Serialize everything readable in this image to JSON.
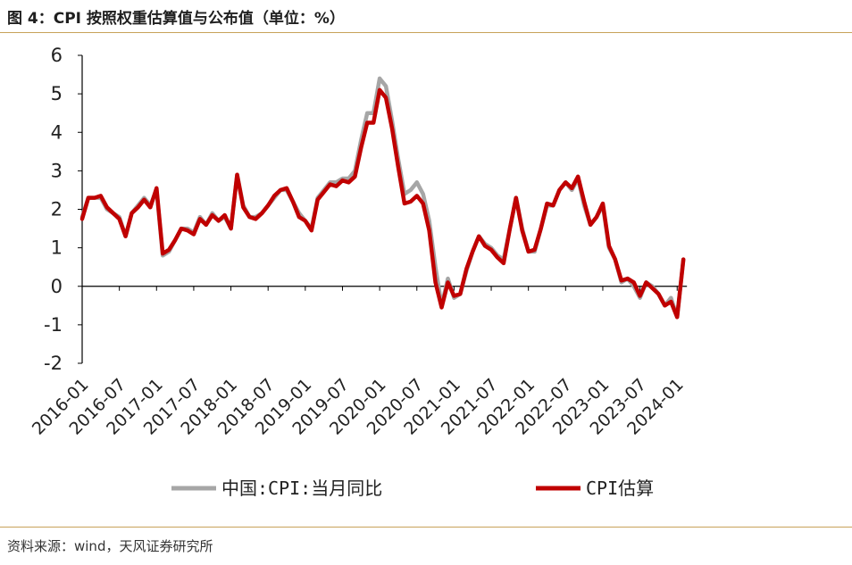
{
  "figure": {
    "title": "图 4：CPI 按照权重估算值与公布值（单位：%）",
    "source": "资料来源：wind，天风证券研究所"
  },
  "chart_data": {
    "type": "line",
    "title": "图 4：CPI 按照权重估算值与公布值（单位：%）",
    "xlabel": "",
    "ylabel": "%",
    "ylim": [
      -2,
      6
    ],
    "yticks": [
      -2,
      -1,
      0,
      1,
      2,
      3,
      4,
      5,
      6
    ],
    "xticks": [
      "2016-01",
      "2016-07",
      "2017-01",
      "2017-07",
      "2018-01",
      "2018-07",
      "2019-01",
      "2019-07",
      "2020-01",
      "2020-07",
      "2021-01",
      "2021-07",
      "2022-01",
      "2022-07",
      "2023-01",
      "2023-07",
      "2024-01"
    ],
    "legend_position": "bottom",
    "series": [
      {
        "name": "中国:CPI:当月同比",
        "color": "#a6a6a6",
        "start": "2016-01",
        "values": [
          1.8,
          2.3,
          2.3,
          2.3,
          2.0,
          1.9,
          1.8,
          1.3,
          1.9,
          2.1,
          2.3,
          2.1,
          2.5,
          0.8,
          0.9,
          1.2,
          1.5,
          1.5,
          1.4,
          1.8,
          1.6,
          1.9,
          1.7,
          1.8,
          1.5,
          2.9,
          2.1,
          1.8,
          1.8,
          1.9,
          2.1,
          2.3,
          2.5,
          2.5,
          2.2,
          1.9,
          1.7,
          1.5,
          2.3,
          2.5,
          2.7,
          2.7,
          2.8,
          2.8,
          3.0,
          3.8,
          4.5,
          4.5,
          5.4,
          5.2,
          4.3,
          3.3,
          2.4,
          2.5,
          2.7,
          2.4,
          1.7,
          0.5,
          -0.5,
          0.2,
          -0.3,
          -0.2,
          0.4,
          0.9,
          1.3,
          1.1,
          1.0,
          0.8,
          0.7,
          1.5,
          2.3,
          1.5,
          0.9,
          0.9,
          1.5,
          2.1,
          2.1,
          2.5,
          2.7,
          2.5,
          2.8,
          2.1,
          1.6,
          1.8,
          2.1,
          1.0,
          0.7,
          0.1,
          0.2,
          0.0,
          -0.3,
          0.1,
          0.0,
          -0.2,
          -0.5,
          -0.3,
          -0.8,
          0.7
        ]
      },
      {
        "name": "CPI估算",
        "color": "#c00000",
        "start": "2016-01",
        "values": [
          1.75,
          2.3,
          2.3,
          2.35,
          2.05,
          1.9,
          1.75,
          1.3,
          1.9,
          2.05,
          2.25,
          2.05,
          2.55,
          0.85,
          0.95,
          1.2,
          1.5,
          1.45,
          1.35,
          1.75,
          1.6,
          1.85,
          1.7,
          1.85,
          1.5,
          2.9,
          2.05,
          1.8,
          1.75,
          1.9,
          2.1,
          2.35,
          2.5,
          2.55,
          2.2,
          1.8,
          1.7,
          1.45,
          2.25,
          2.45,
          2.65,
          2.6,
          2.75,
          2.7,
          2.85,
          3.6,
          4.25,
          4.25,
          5.1,
          4.9,
          4.1,
          3.1,
          2.15,
          2.2,
          2.35,
          2.15,
          1.45,
          0.1,
          -0.55,
          0.1,
          -0.25,
          -0.2,
          0.45,
          0.9,
          1.3,
          1.05,
          0.95,
          0.75,
          0.6,
          1.5,
          2.3,
          1.45,
          0.9,
          0.95,
          1.5,
          2.15,
          2.1,
          2.5,
          2.7,
          2.55,
          2.85,
          2.2,
          1.6,
          1.8,
          2.15,
          1.05,
          0.7,
          0.15,
          0.2,
          0.1,
          -0.25,
          0.1,
          -0.05,
          -0.2,
          -0.5,
          -0.4,
          -0.8,
          0.7
        ]
      }
    ]
  }
}
